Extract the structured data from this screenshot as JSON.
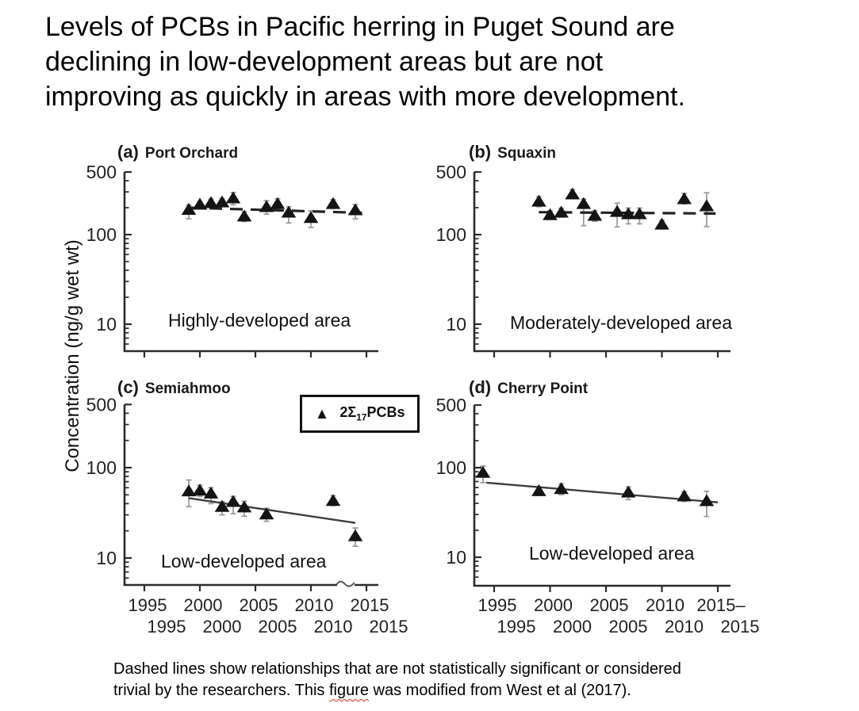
{
  "title_lines": [
    "Levels of PCBs in Pacific herring in Puget Sound are",
    "declining in low-development areas but are not",
    "improving as quickly in areas with more development."
  ],
  "ylabel": "Concentration (ng/g wet wt)",
  "legend": {
    "symbol": "▲",
    "prefix": "2Σ",
    "subscript": "17",
    "suffix": "PCBs"
  },
  "caption": {
    "line1": "Dashed lines show relationships that are not statistically significant or considered",
    "line2_pre": "trivial by the researchers. This ",
    "line2_word": "figure",
    "line2_post": " was modified from West et al (2017)."
  },
  "xaxis_labels": {
    "left": {
      "row1": [
        "1995",
        "2000",
        "2005",
        "2010",
        "2015"
      ],
      "row2": [
        "1995",
        "2000",
        "2005",
        "2010",
        "2015"
      ]
    },
    "right": {
      "row1": [
        "1995",
        "2000",
        "2005",
        "2010",
        "2015–"
      ],
      "row2": [
        "1995",
        "2000",
        "2005",
        "2010",
        "2015"
      ]
    }
  },
  "chart_data": [
    {
      "id": "a",
      "type": "scatter",
      "tag": "(a)",
      "site": "Port Orchard",
      "area_label": "Highly-developed area",
      "units": "ng/g wet wt",
      "yticks": [
        500,
        100,
        10
      ],
      "xticks": [
        1995,
        2000,
        2005,
        2010,
        2015
      ],
      "ylim": [
        5,
        500
      ],
      "xlim": [
        1993,
        2016
      ],
      "yscale": "log",
      "x": [
        1999,
        2000,
        2001,
        2002,
        2003,
        2004,
        2006,
        2007,
        2008,
        2010,
        2012,
        2014
      ],
      "y": [
        190,
        217,
        226,
        230,
        255,
        160,
        204,
        221,
        177,
        154,
        221,
        188
      ],
      "err_hi": [
        25,
        18,
        22,
        22,
        40,
        20,
        35,
        30,
        28,
        30,
        25,
        28
      ],
      "err_lo": [
        40,
        18,
        22,
        22,
        40,
        20,
        35,
        30,
        42,
        34,
        25,
        38
      ],
      "trend": {
        "style": "dashed",
        "significant": false,
        "x": [
          1999,
          2014.6
        ],
        "y": [
          200,
          175
        ]
      }
    },
    {
      "id": "b",
      "type": "scatter",
      "tag": "(b)",
      "site": "Squaxin",
      "area_label": "Moderately-developed area",
      "units": "ng/g wet wt",
      "yticks": [
        500,
        100,
        10
      ],
      "xticks": [
        1995,
        2000,
        2005,
        2010,
        2015
      ],
      "ylim": [
        5,
        500
      ],
      "xlim": [
        1993,
        2016
      ],
      "yscale": "log",
      "x": [
        1999,
        2000,
        2001,
        2002,
        2003,
        2004,
        2006,
        2007,
        2008,
        2010,
        2012,
        2014
      ],
      "y": [
        235,
        166,
        177,
        283,
        221,
        163,
        180,
        170,
        170,
        130,
        250,
        208
      ],
      "err_hi": [
        30,
        18,
        20,
        35,
        28,
        22,
        45,
        28,
        28,
        14,
        38,
        85
      ],
      "err_lo": [
        30,
        18,
        20,
        30,
        95,
        22,
        58,
        38,
        38,
        14,
        30,
        85
      ],
      "trend": {
        "style": "dashed",
        "significant": false,
        "x": [
          1999,
          2014.8
        ],
        "y": [
          178,
          172
        ]
      }
    },
    {
      "id": "c",
      "type": "scatter",
      "tag": "(c)",
      "site": "Semiahmoo",
      "area_label": "Low-developed area",
      "units": "ng/g wet wt",
      "yticks": [
        500,
        100,
        10
      ],
      "xticks": [
        1995,
        2000,
        2005,
        2010,
        2015
      ],
      "ylim": [
        5,
        500
      ],
      "xlim": [
        1993,
        2016
      ],
      "yscale": "log",
      "x": [
        1999,
        2000,
        2001,
        2002,
        2003,
        2004,
        2006,
        2012,
        2014
      ],
      "y": [
        55,
        56,
        52,
        37,
        42,
        36.5,
        30.5,
        43,
        17.5
      ],
      "err_hi": [
        18,
        8,
        8,
        5,
        6,
        6,
        5,
        6,
        4
      ],
      "err_lo": [
        18,
        8,
        12,
        7,
        11,
        7.5,
        5,
        5,
        4
      ],
      "trend": {
        "style": "solid",
        "significant": true,
        "x": [
          1999,
          2014
        ],
        "y": [
          46,
          24.5
        ]
      }
    },
    {
      "id": "d",
      "type": "scatter",
      "tag": "(d)",
      "site": "Cherry Point",
      "area_label": "Low-developed area",
      "units": "ng/g wet wt",
      "yticks": [
        500,
        100,
        10
      ],
      "xticks": [
        1995,
        2000,
        2005,
        2010,
        2015
      ],
      "ylim": [
        5,
        500
      ],
      "xlim": [
        1993,
        2016
      ],
      "yscale": "log",
      "x": [
        1994,
        1999,
        2001,
        2007,
        2012,
        2014
      ],
      "y": [
        88,
        55,
        58,
        53,
        48,
        42.5
      ],
      "err_hi": [
        16,
        6,
        8,
        8,
        6,
        12
      ],
      "err_lo": [
        20,
        6,
        8,
        9,
        6,
        14
      ],
      "trend": {
        "style": "solid",
        "significant": true,
        "x": [
          1994.3,
          2015
        ],
        "y": [
          68,
          41
        ]
      }
    }
  ]
}
